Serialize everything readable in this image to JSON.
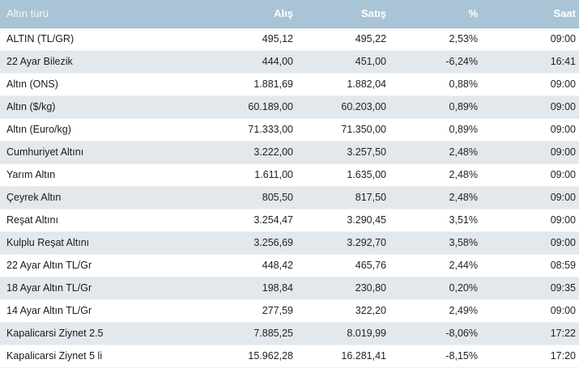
{
  "table": {
    "headers": {
      "name": "Altın türü",
      "buy": "Alış",
      "sell": "Satış",
      "change": "%",
      "time": "Saat"
    },
    "rows": [
      {
        "name": "ALTIN (TL/GR)",
        "buy": "495,12",
        "sell": "495,22",
        "change": "2,53%",
        "time": "09:00"
      },
      {
        "name": "22 Ayar Bilezik",
        "buy": "444,00",
        "sell": "451,00",
        "change": "-6,24%",
        "time": "16:41"
      },
      {
        "name": "Altın (ONS)",
        "buy": "1.881,69",
        "sell": "1.882,04",
        "change": "0,88%",
        "time": "09:00"
      },
      {
        "name": "Altın ($/kg)",
        "buy": "60.189,00",
        "sell": "60.203,00",
        "change": "0,89%",
        "time": "09:00"
      },
      {
        "name": "Altın (Euro/kg)",
        "buy": "71.333,00",
        "sell": "71.350,00",
        "change": "0,89%",
        "time": "09:00"
      },
      {
        "name": "Cumhuriyet Altını",
        "buy": "3.222,00",
        "sell": "3.257,50",
        "change": "2,48%",
        "time": "09:00"
      },
      {
        "name": "Yarım Altın",
        "buy": "1.611,00",
        "sell": "1.635,00",
        "change": "2,48%",
        "time": "09:00"
      },
      {
        "name": "Çeyrek Altın",
        "buy": "805,50",
        "sell": "817,50",
        "change": "2,48%",
        "time": "09:00"
      },
      {
        "name": "Reşat Altını",
        "buy": "3.254,47",
        "sell": "3.290,45",
        "change": "3,51%",
        "time": "09:00"
      },
      {
        "name": "Kulplu Reşat Altını",
        "buy": "3.256,69",
        "sell": "3.292,70",
        "change": "3,58%",
        "time": "09:00"
      },
      {
        "name": "22 Ayar Altın TL/Gr",
        "buy": "448,42",
        "sell": "465,76",
        "change": "2,44%",
        "time": "08:59"
      },
      {
        "name": "18 Ayar Altın TL/Gr",
        "buy": "198,84",
        "sell": "230,80",
        "change": "0,20%",
        "time": "09:35"
      },
      {
        "name": "14 Ayar Altın TL/Gr",
        "buy": "277,59",
        "sell": "322,20",
        "change": "2,49%",
        "time": "09:00"
      },
      {
        "name": "Kapalicarsi Ziynet 2.5",
        "buy": "7.885,25",
        "sell": "8.019,99",
        "change": "-8,06%",
        "time": "17:22"
      },
      {
        "name": "Kapalicarsi Ziynet 5 li",
        "buy": "15.962,28",
        "sell": "16.281,41",
        "change": "-8,15%",
        "time": "17:20"
      }
    ]
  }
}
